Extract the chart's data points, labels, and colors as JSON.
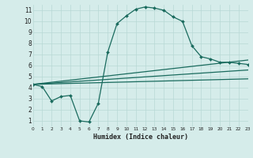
{
  "title": "",
  "xlabel": "Humidex (Indice chaleur)",
  "xlim": [
    0,
    23
  ],
  "ylim": [
    0.5,
    11.5
  ],
  "xticks": [
    0,
    1,
    2,
    3,
    4,
    5,
    6,
    7,
    8,
    9,
    10,
    11,
    12,
    13,
    14,
    15,
    16,
    17,
    18,
    19,
    20,
    21,
    22,
    23
  ],
  "yticks": [
    1,
    2,
    3,
    4,
    5,
    6,
    7,
    8,
    9,
    10,
    11
  ],
  "bg_color": "#d5ecea",
  "grid_color": "#b8d8d5",
  "line_color": "#1a6b5e",
  "curve1_x": [
    0,
    1,
    2,
    3,
    4,
    5,
    6,
    7,
    8,
    9,
    10,
    11,
    12,
    13,
    14,
    15,
    16,
    17,
    18,
    19,
    20,
    21,
    22,
    23
  ],
  "curve1_y": [
    4.3,
    4.1,
    2.8,
    3.2,
    3.3,
    1.0,
    0.9,
    2.6,
    7.2,
    9.8,
    10.5,
    11.1,
    11.3,
    11.2,
    11.0,
    10.4,
    10.0,
    7.8,
    6.8,
    6.6,
    6.3,
    6.3,
    6.2,
    6.1
  ],
  "curve_line1_x": [
    0,
    23
  ],
  "curve_line1_y": [
    4.3,
    6.5
  ],
  "curve_line2_x": [
    0,
    23
  ],
  "curve_line2_y": [
    4.3,
    5.6
  ],
  "curve_line3_x": [
    0,
    23
  ],
  "curve_line3_y": [
    4.3,
    4.8
  ]
}
